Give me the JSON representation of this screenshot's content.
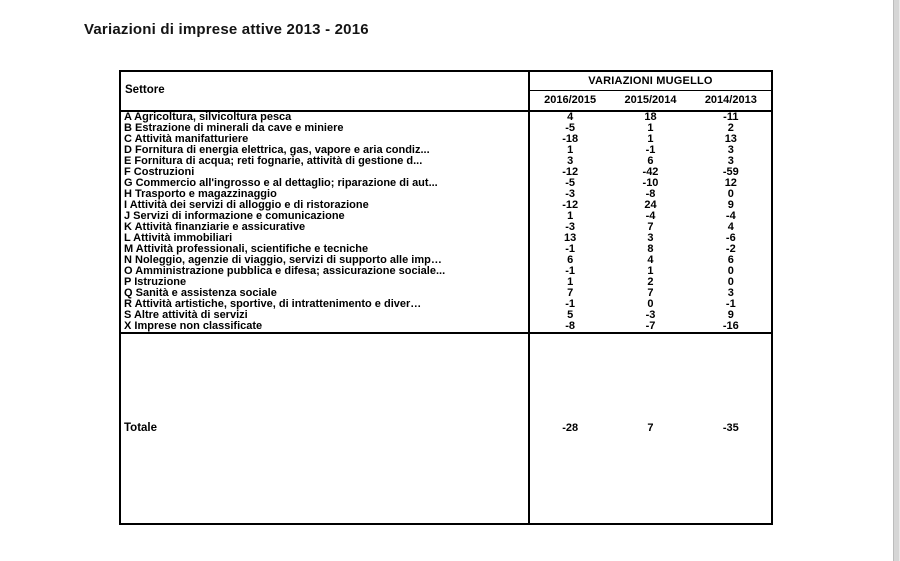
{
  "page": {
    "title": "Variazioni di imprese attive 2013 - 2016"
  },
  "table": {
    "sector_header": "Settore",
    "group_header": "VARIAZIONI MUGELLO",
    "columns": [
      "2016/2015",
      "2015/2014",
      "2014/2013"
    ],
    "rows": [
      {
        "label": "A Agricoltura, silvicoltura pesca",
        "values": [
          4,
          18,
          -11
        ]
      },
      {
        "label": "B Estrazione di minerali da cave e miniere",
        "values": [
          -5,
          1,
          2
        ]
      },
      {
        "label": "C Attività manifatturiere",
        "values": [
          -18,
          1,
          13
        ]
      },
      {
        "label": "D Fornitura di energia elettrica, gas, vapore e aria condiz...",
        "values": [
          1,
          -1,
          3
        ]
      },
      {
        "label": "E Fornitura di acqua; reti fognarie, attività di gestione d...",
        "values": [
          3,
          6,
          3
        ]
      },
      {
        "label": "F Costruzioni",
        "values": [
          -12,
          -42,
          -59
        ]
      },
      {
        "label": "G Commercio all'ingrosso e al dettaglio; riparazione di aut...",
        "values": [
          -5,
          -10,
          12
        ]
      },
      {
        "label": "H Trasporto e magazzinaggio",
        "values": [
          -3,
          -8,
          0
        ]
      },
      {
        "label": "I Attività dei servizi di alloggio e di ristorazione",
        "values": [
          -12,
          24,
          9
        ]
      },
      {
        "label": "J Servizi di informazione e comunicazione",
        "values": [
          1,
          -4,
          -4
        ]
      },
      {
        "label": "K Attività finanziarie e assicurative",
        "values": [
          -3,
          7,
          4
        ]
      },
      {
        "label": "L Attività immobiliari",
        "values": [
          13,
          3,
          -6
        ]
      },
      {
        "label": "M Attività professionali, scientifiche e tecniche",
        "values": [
          -1,
          8,
          -2
        ]
      },
      {
        "label": "N Noleggio, agenzie di viaggio, servizi di supporto alle imp…",
        "values": [
          6,
          4,
          6
        ]
      },
      {
        "label": "O Amministrazione pubblica e difesa; assicurazione sociale...",
        "values": [
          -1,
          1,
          0
        ]
      },
      {
        "label": "P Istruzione",
        "values": [
          1,
          2,
          0
        ]
      },
      {
        "label": "Q Sanità e assistenza sociale",
        "values": [
          7,
          7,
          3
        ]
      },
      {
        "label": "R Attività artistiche, sportive, di intrattenimento e diver…",
        "values": [
          -1,
          0,
          -1
        ]
      },
      {
        "label": "S Altre attività di servizi",
        "values": [
          5,
          -3,
          9
        ]
      },
      {
        "label": "X Imprese non classificate",
        "values": [
          -8,
          -7,
          -16
        ]
      }
    ],
    "total": {
      "label": "Totale",
      "values": [
        -28,
        7,
        -35
      ]
    }
  },
  "chart_data": {
    "type": "table",
    "title": "Variazioni di imprese attive 2013 - 2016",
    "group_header": "VARIAZIONI MUGELLO",
    "columns": [
      "Settore",
      "2016/2015",
      "2015/2014",
      "2014/2013"
    ],
    "totals_row": [
      "Totale",
      -28,
      7,
      -35
    ]
  }
}
